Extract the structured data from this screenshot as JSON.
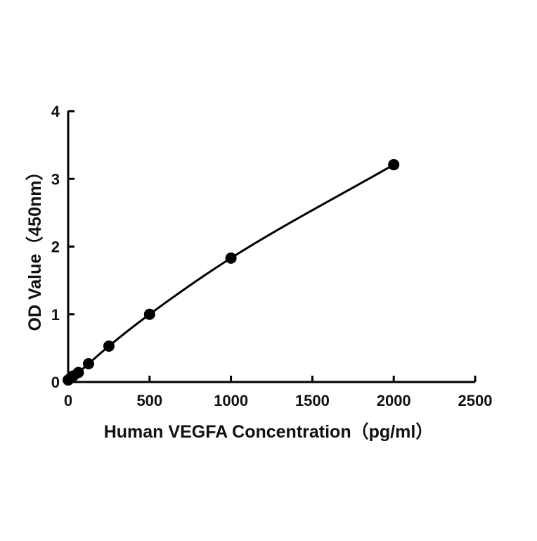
{
  "chart_data": {
    "type": "scatter",
    "title": "",
    "xlabel": "Human VEGFA    Concentration（pg/ml）",
    "ylabel": "OD Value（450nm）",
    "xlim": [
      0,
      2500
    ],
    "ylim": [
      0,
      4
    ],
    "x_ticks": [
      0,
      500,
      1000,
      1500,
      2000,
      2500
    ],
    "y_ticks": [
      0,
      1,
      2,
      3,
      4
    ],
    "grid": false,
    "legend": "none",
    "series": [
      {
        "points": [
          {
            "x": 0,
            "y": 0.03
          },
          {
            "x": 15.6,
            "y": 0.06
          },
          {
            "x": 31.25,
            "y": 0.09
          },
          {
            "x": 62.5,
            "y": 0.14
          },
          {
            "x": 125,
            "y": 0.27
          },
          {
            "x": 250,
            "y": 0.53
          },
          {
            "x": 500,
            "y": 1.0
          },
          {
            "x": 1000,
            "y": 1.83
          },
          {
            "x": 2000,
            "y": 3.21
          }
        ],
        "fit": "curve"
      }
    ],
    "colors": {
      "marker": "#000000",
      "line": "#000000",
      "axis": "#000000"
    }
  }
}
